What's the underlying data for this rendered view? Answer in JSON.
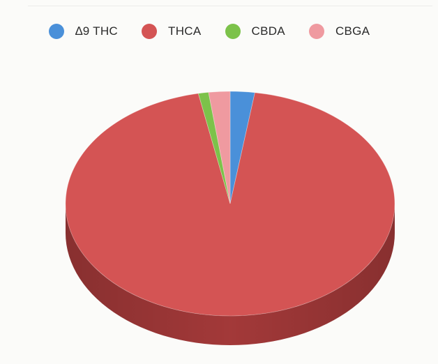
{
  "chart_data": {
    "type": "pie",
    "style": "3d",
    "legend_position": "top",
    "categories": [
      "∆9 THC",
      "THCA",
      "CBDA",
      "CBGA"
    ],
    "values": [
      2.4,
      94.5,
      1.0,
      2.1
    ],
    "colors": [
      "#4a90d9",
      "#d45454",
      "#7cc24a",
      "#ef9aa0"
    ],
    "side_colors": [
      "#2f6aa6",
      "#a63a3a",
      "#5a9434",
      "#c76f76"
    ]
  }
}
